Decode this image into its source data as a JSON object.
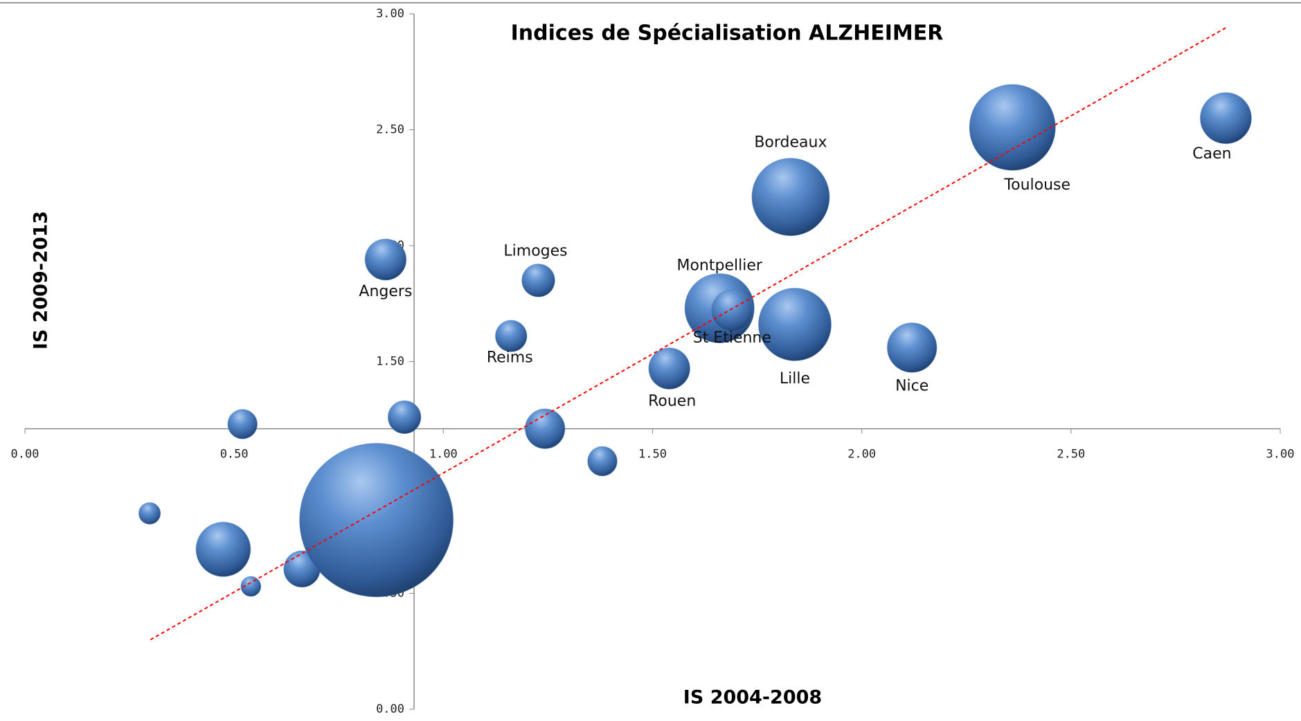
{
  "chart_data": {
    "type": "bubble",
    "title": "Indices de Spécialisation  ALZHEIMER",
    "x_label": "IS 2004-2008",
    "y_label": "IS 2009-2013",
    "xlim": [
      0,
      3
    ],
    "ylim": [
      0,
      3
    ],
    "xticks": [
      {
        "value": 0,
        "label": "0.00"
      },
      {
        "value": 0.5,
        "label": "0.50"
      },
      {
        "value": 1,
        "label": "1.00"
      },
      {
        "value": 1.5,
        "label": "1.50"
      },
      {
        "value": 2,
        "label": "2.00"
      },
      {
        "value": 2.5,
        "label": "2.50"
      },
      {
        "value": 3,
        "label": "3.00"
      }
    ],
    "yticks": [
      {
        "value": 0,
        "label": "0.00"
      },
      {
        "value": 0.5,
        "label": "0.50"
      },
      {
        "value": 1,
        "label": "1.00"
      },
      {
        "value": 1.5,
        "label": "1.50"
      },
      {
        "value": 2,
        "label": "2.00"
      },
      {
        "value": 2.5,
        "label": "2.50"
      },
      {
        "value": 3,
        "label": "3.00"
      }
    ],
    "axis_cross": {
      "x": 0.93,
      "y": 1.21
    },
    "color": "#4f81bd",
    "labels": [
      "Angers",
      "Limoges",
      "Reims",
      "Montpellier",
      "St Etienne",
      "Bordeaux",
      "Lille",
      "Rouen",
      "Nice",
      "Toulouse",
      "Caen",
      null,
      null,
      null,
      null,
      null,
      null,
      null,
      null,
      null
    ],
    "x": [
      0.862,
      1.227,
      1.162,
      1.66,
      1.69,
      1.83,
      1.84,
      1.54,
      2.12,
      2.36,
      2.87,
      0.52,
      0.907,
      1.243,
      1.38,
      0.298,
      0.474,
      0.54,
      0.662,
      0.84
    ],
    "y": [
      1.94,
      1.85,
      1.61,
      1.73,
      1.72,
      2.21,
      1.66,
      1.47,
      1.56,
      2.51,
      2.55,
      1.23,
      1.26,
      1.21,
      1.07,
      0.845,
      0.69,
      0.53,
      0.605,
      0.816
    ],
    "sizes": [
      7.2,
      4.6,
      4.2,
      20.4,
      7.2,
      25.5,
      22.4,
      7.2,
      10.4,
      31.3,
      11.1,
      3.7,
      4.6,
      6.7,
      3.7,
      2.0,
      12.6,
      1.7,
      5.6,
      100
    ],
    "trendline": {
      "x": [
        0.3,
        2.87
      ],
      "y": [
        0.3,
        2.94
      ],
      "color": "#ff0000"
    }
  }
}
